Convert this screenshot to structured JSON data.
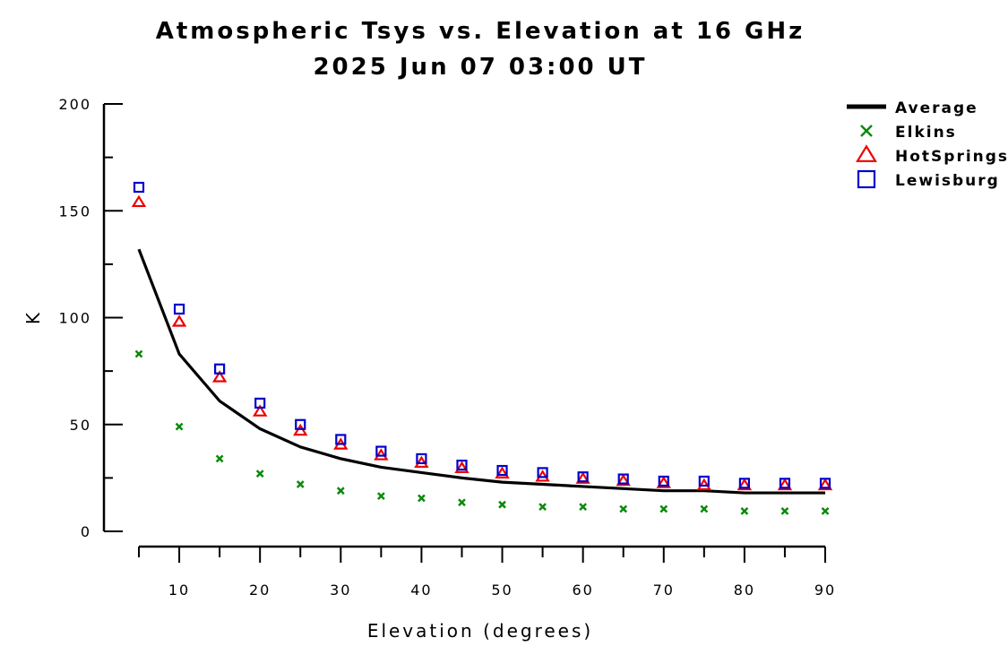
{
  "chart_data": {
    "type": "line",
    "title": "Atmospheric Tsys vs. Elevation at 16 GHz",
    "subtitle": "2025 Jun 07 03:00 UT",
    "xlabel": "Elevation (degrees)",
    "ylabel": "K",
    "xlim": [
      5,
      90
    ],
    "ylim": [
      0,
      200
    ],
    "xticks": [
      10,
      20,
      30,
      40,
      50,
      60,
      70,
      80,
      90
    ],
    "yticks": [
      0,
      50,
      100,
      150,
      200
    ],
    "grid": false,
    "legend_position": "top-right",
    "x": [
      5,
      10,
      15,
      20,
      25,
      30,
      35,
      40,
      45,
      50,
      55,
      60,
      65,
      70,
      75,
      80,
      85,
      90
    ],
    "series": [
      {
        "name": "Average",
        "marker": "line",
        "color": "#000000",
        "values": [
          132,
          83,
          61,
          48,
          39.5,
          34,
          30,
          27.5,
          25,
          23,
          22,
          21,
          20,
          19,
          19,
          18,
          18,
          18
        ]
      },
      {
        "name": "Elkins",
        "marker": "x",
        "color": "#0a8a0a",
        "values": [
          83,
          49,
          34,
          27,
          22,
          19,
          16.5,
          15.5,
          13.5,
          12.5,
          11.5,
          11.5,
          10.5,
          10.5,
          10.5,
          9.5,
          9.5,
          9.5
        ]
      },
      {
        "name": "HotSprings",
        "marker": "triangle",
        "color": "#ee0000",
        "values": [
          154,
          98,
          72,
          56,
          47,
          40.5,
          35.5,
          32,
          29.5,
          27,
          25.5,
          24.5,
          23.5,
          22.5,
          21.5,
          21.5,
          21.5,
          21.5
        ]
      },
      {
        "name": "Lewisburg",
        "marker": "square",
        "color": "#0000cc",
        "values": [
          161,
          104,
          76,
          60,
          50,
          43,
          37.5,
          34,
          31,
          28.5,
          27.5,
          25.5,
          24.5,
          23.5,
          23.5,
          22.5,
          22.5,
          22.5
        ]
      }
    ]
  }
}
